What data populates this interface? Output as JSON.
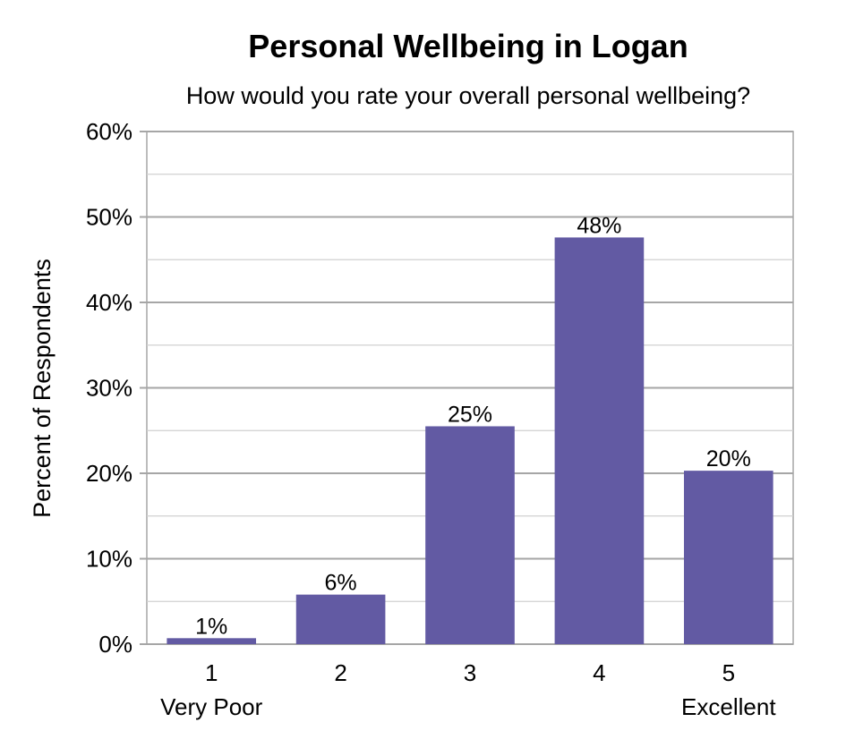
{
  "chart_data": {
    "type": "bar",
    "title": "Personal Wellbeing in Logan",
    "subtitle": "How would you rate your overall personal wellbeing?",
    "xlabel": "",
    "ylabel": "Percent of Respondents",
    "categories": [
      "1",
      "2",
      "3",
      "4",
      "5"
    ],
    "category_sublabels": [
      "Very Poor",
      "",
      "",
      "",
      "Excellent"
    ],
    "values": [
      0.7,
      5.8,
      25.5,
      47.6,
      20.3
    ],
    "data_labels": [
      "1%",
      "6%",
      "25%",
      "48%",
      "20%"
    ],
    "ylim": [
      0,
      60
    ],
    "yticks": [
      0,
      10,
      20,
      30,
      40,
      50,
      60
    ],
    "ytick_labels": [
      "0%",
      "10%",
      "20%",
      "30%",
      "40%",
      "50%",
      "60%"
    ],
    "grid": true,
    "legend": "none",
    "colors": {
      "bar": "#625AA3",
      "major_grid": "#a6a6a6",
      "minor_grid": "#d0d0d0",
      "plot_border": "#a6a6a6"
    }
  }
}
